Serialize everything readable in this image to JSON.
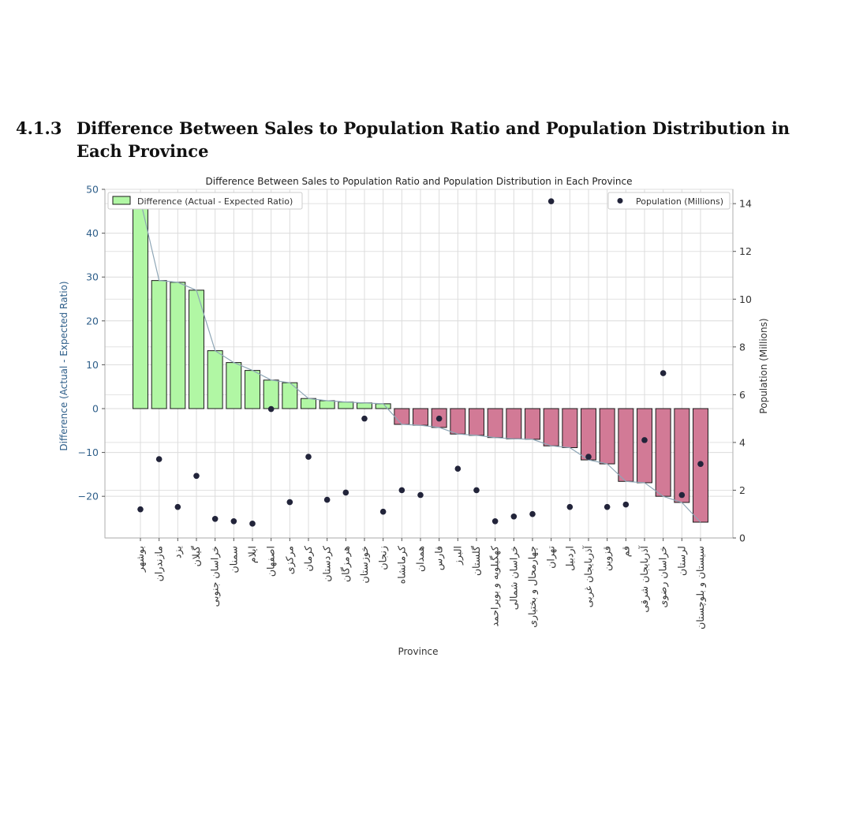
{
  "section": {
    "number": "4.1.3",
    "title": "Difference Between Sales to Population Ratio and Population Distribution in Each Province"
  },
  "chart_data": {
    "type": "bar",
    "title": "Difference Between Sales to Population Ratio and Population Distribution in Each Province",
    "xlabel": "Province",
    "ylabel": "Difference (Actual - Expected Ratio)",
    "y2label": "Population (Millions)",
    "ylim": [
      -29.5,
      50
    ],
    "y2lim": [
      0,
      14.6
    ],
    "yticks": [
      50,
      40,
      30,
      20,
      10,
      0,
      -10,
      -20
    ],
    "y2ticks": [
      14,
      12,
      10,
      8,
      6,
      4,
      2,
      0
    ],
    "grid": true,
    "legend": [
      {
        "label": "Difference (Actual - Expected Ratio)",
        "position": "top-left",
        "kind": "bar"
      },
      {
        "label": "Population (Millions)",
        "position": "top-right",
        "kind": "point"
      }
    ],
    "colors": {
      "positive": "#b1f7a4",
      "negative": "#d27a96",
      "line": "#8ea6b6",
      "point": "#22243a",
      "left_axis": "#2f5f8a"
    },
    "categories": [
      "بوشهر",
      "مازندران",
      "یزد",
      "گیلان",
      "خراسان جنوبی",
      "سمنان",
      "ایلام",
      "اصفهان",
      "مرکزی",
      "کرمان",
      "کردستان",
      "هرمزگان",
      "خوزستان",
      "زنجان",
      "کرمانشاه",
      "همدان",
      "فارس",
      "البرز",
      "گلستان",
      "کهگیلویه و بویراحمد",
      "خراسان شمالی",
      "چهارمحال و بختیاری",
      "تهران",
      "اردبیل",
      "آذربایجان غربی",
      "قزوین",
      "قم",
      "آذربایجان شرقی",
      "خراسان رضوی",
      "لرستان",
      "سیستان و بلوچستان"
    ],
    "series": [
      {
        "name": "Difference (Actual - Expected Ratio)",
        "type": "bar",
        "axis": "left",
        "values": [
          47.5,
          29.2,
          28.8,
          27.0,
          13.2,
          10.5,
          8.7,
          6.5,
          5.9,
          2.3,
          1.8,
          1.5,
          1.3,
          1.1,
          -3.6,
          -3.8,
          -4.3,
          -5.8,
          -6.1,
          -6.6,
          -6.9,
          -7.0,
          -8.5,
          -8.9,
          -11.7,
          -12.6,
          -16.6,
          -16.9,
          -20.0,
          -21.4,
          -25.9
        ]
      },
      {
        "name": "Population (Millions)",
        "type": "scatter",
        "axis": "right",
        "values": [
          1.2,
          3.3,
          1.3,
          2.6,
          0.8,
          0.7,
          0.6,
          5.4,
          1.5,
          3.4,
          1.6,
          1.9,
          5.0,
          1.1,
          2.0,
          1.8,
          5.0,
          2.9,
          2.0,
          0.7,
          0.9,
          1.0,
          14.1,
          1.3,
          3.4,
          1.3,
          1.4,
          4.1,
          6.9,
          1.8,
          3.1
        ]
      }
    ]
  }
}
